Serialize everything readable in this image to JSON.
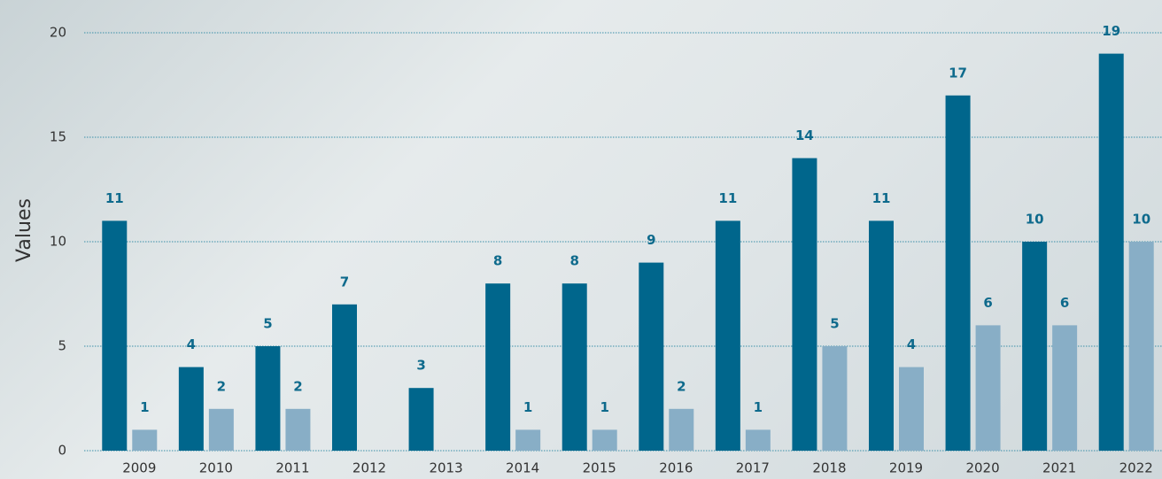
{
  "chart_data": {
    "type": "bar",
    "y_label": "Values",
    "categories": [
      "2009",
      "2010",
      "2011",
      "2012",
      "2013",
      "2014",
      "2015",
      "2016",
      "2017",
      "2018",
      "2019",
      "2020",
      "2021",
      "2022"
    ],
    "series": [
      {
        "color": "#00668c",
        "values": [
          11,
          4,
          5,
          7,
          3,
          8,
          8,
          9,
          11,
          14,
          11,
          17,
          10,
          19
        ]
      },
      {
        "color": "#88aec6",
        "values": [
          1,
          2,
          2,
          null,
          null,
          1,
          1,
          2,
          1,
          5,
          4,
          6,
          6,
          10
        ]
      }
    ],
    "ylim": [
      0,
      20
    ],
    "yticks": [
      0,
      5,
      10,
      15,
      20
    ],
    "grid": true
  }
}
